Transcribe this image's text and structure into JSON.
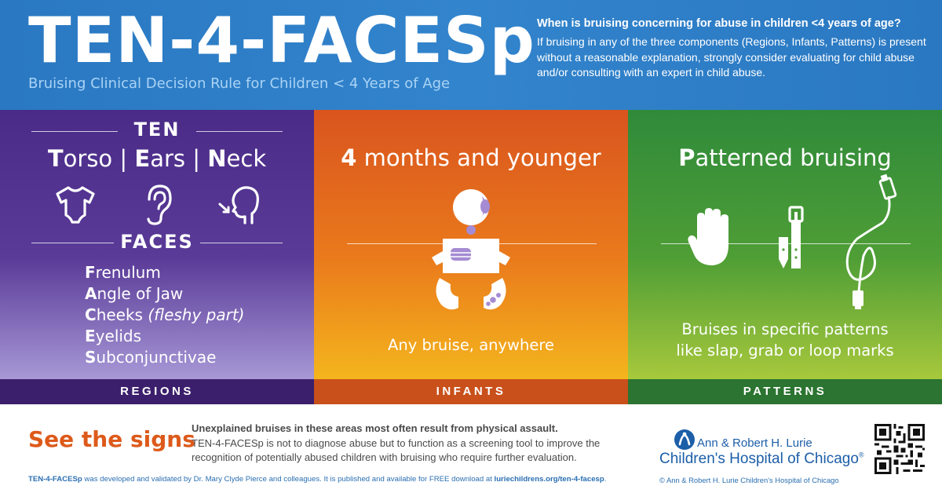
{
  "header": {
    "title": "TEN-4-FACESp",
    "subtitle": "Bruising Clinical Decision Rule for Children < 4 Years of Age",
    "question": "When is bruising concerning for abuse in children <4 years of age?",
    "body": "If bruising in any of the three components (Regions, Infants, Patterns) is present without a reasonable explanation, strongly consider evaluating for child abuse and/or consulting with an expert in child abuse."
  },
  "colors": {
    "header_blue": "#2a78c2",
    "regions_purple": "#4a2b87",
    "infants_orange": "#e8701c",
    "patterns_green": "#3e9438",
    "signs_orange": "#dd5a1b",
    "link_blue": "#2a6fb2"
  },
  "regions": {
    "ten_label": "TEN",
    "ten_items": [
      {
        "initial": "T",
        "rest": "orso"
      },
      {
        "initial": "E",
        "rest": "ars"
      },
      {
        "initial": "N",
        "rest": "eck"
      }
    ],
    "separator": "|",
    "icons": [
      "onesie-icon",
      "ear-icon",
      "neck-icon"
    ],
    "faces_label": "FACES",
    "faces_items": [
      {
        "initial": "F",
        "rest": "renulum",
        "note": ""
      },
      {
        "initial": "A",
        "rest": "ngle of Jaw",
        "note": ""
      },
      {
        "initial": "C",
        "rest": "heeks",
        "note": "(fleshy part)"
      },
      {
        "initial": "E",
        "rest": "yelids",
        "note": ""
      },
      {
        "initial": "S",
        "rest": "ubconjunctivae",
        "note": ""
      }
    ],
    "band_label": "REGIONS"
  },
  "infants": {
    "heading_bold": "4",
    "heading_rest": " months and younger",
    "icon": "infant-icon",
    "caption": "Any bruise, anywhere",
    "band_label": "INFANTS"
  },
  "patterns": {
    "heading_bold": "P",
    "heading_rest": "atterned bruising",
    "icons": [
      "hand-icon",
      "belt-icon",
      "cord-loop-icon"
    ],
    "caption_line1": "Bruises in specific patterns",
    "caption_line2": "like slap, grab or loop marks",
    "band_label": "PATTERNS"
  },
  "footer": {
    "see_signs": "See the signs",
    "lead": "Unexplained bruises in these areas most often result from physical assault.",
    "body": "TEN-4-FACESp is not to diagnose abuse but to function as a screening tool to improve the recognition of potentially abused children with bruising who require further evaluation.",
    "credit_bold": "TEN-4-FACESp",
    "credit_rest": " was developed and validated by Dr. Mary Clyde Pierce and colleagues. It is published and available for FREE download at ",
    "credit_link": "luriechildrens.org/ten-4-facesp",
    "credit_end": ".",
    "copyright": "© Ann & Robert H. Lurie Children's Hospital of Chicago",
    "logo_line1": "Ann & Robert H. Lurie",
    "logo_line2": "Children's Hospital of Chicago",
    "logo_mark": "®"
  }
}
